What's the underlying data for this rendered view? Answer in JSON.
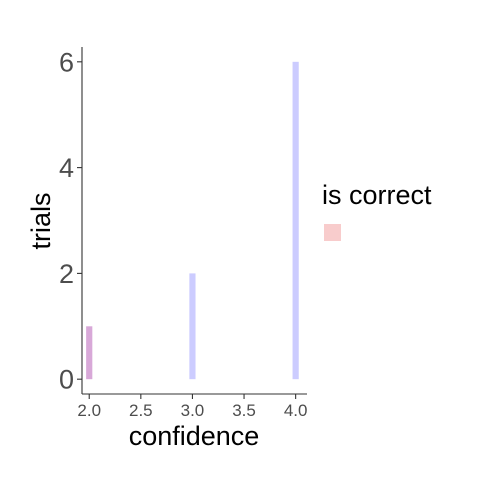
{
  "chart_data": {
    "type": "bar",
    "xlabel": "confidence",
    "ylabel": "trials",
    "xlim": [
      1.93,
      4.11
    ],
    "ylim": [
      -0.28,
      6.28
    ],
    "x_ticks": [
      2.0,
      2.5,
      3.0,
      3.5,
      4.0
    ],
    "x_tick_labels": [
      "2.0",
      "2.5",
      "3.0",
      "3.5",
      "4.0"
    ],
    "y_ticks": [
      0,
      2,
      4,
      6
    ],
    "y_tick_labels": [
      "0",
      "2",
      "4",
      "6"
    ],
    "bar_width": 0.06,
    "grid": false,
    "legend": {
      "title": "is correct",
      "placement": "right",
      "entries": [
        {
          "label": "",
          "color": "#f8cccc"
        }
      ]
    },
    "series": [
      {
        "color": "#d8a8d8",
        "x": [
          2.0
        ],
        "values": [
          1
        ]
      },
      {
        "color": "#ccccff",
        "x": [
          3.0,
          4.0
        ],
        "values": [
          2,
          6
        ]
      }
    ]
  }
}
